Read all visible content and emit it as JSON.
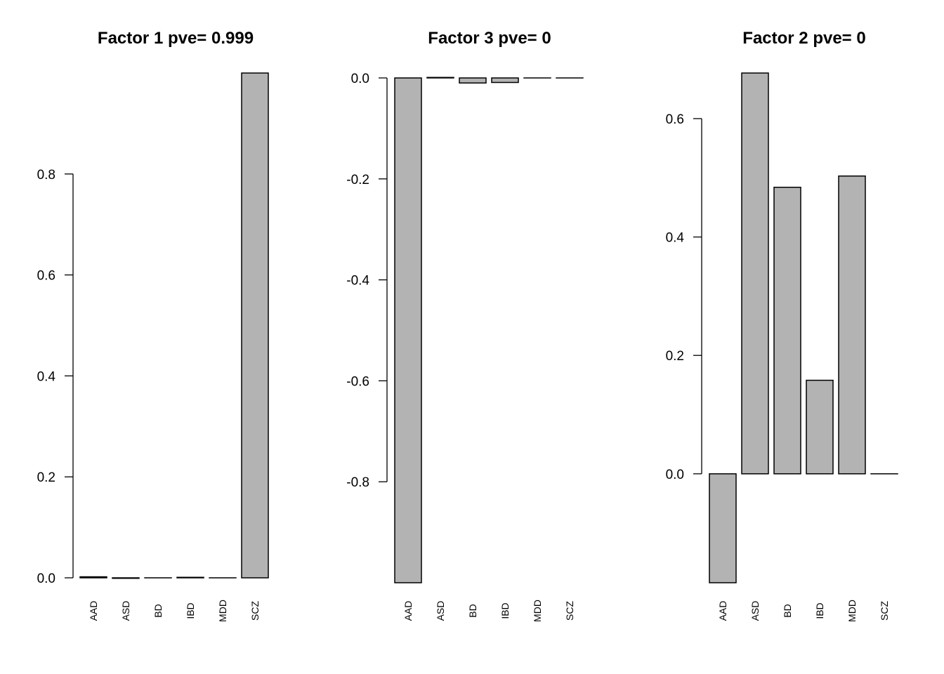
{
  "chart_data": [
    {
      "type": "bar",
      "title": "Factor 1 pve= 0.999",
      "categories": [
        "AAD",
        "ASD",
        "BD",
        "IBD",
        "MDD",
        "SCZ"
      ],
      "values": [
        0.002,
        -0.001,
        0.0,
        0.001,
        0.0,
        1.0
      ],
      "yticks": [
        "0.0",
        "0.2",
        "0.4",
        "0.6",
        "0.8"
      ],
      "ylim": [
        0,
        1.0
      ],
      "xlabel": "",
      "ylabel": ""
    },
    {
      "type": "bar",
      "title": "Factor 3 pve= 0",
      "categories": [
        "AAD",
        "ASD",
        "BD",
        "IBD",
        "MDD",
        "SCZ"
      ],
      "values": [
        -1.0,
        0.001,
        -0.01,
        -0.009,
        0.0,
        0.0
      ],
      "yticks": [
        "0.0",
        "-0.2",
        "-0.4",
        "-0.6",
        "-0.8"
      ],
      "ylim": [
        -1.0,
        0
      ],
      "xlabel": "",
      "ylabel": ""
    },
    {
      "type": "bar",
      "title": "Factor 2 pve= 0",
      "categories": [
        "AAD",
        "ASD",
        "BD",
        "IBD",
        "MDD",
        "SCZ"
      ],
      "values": [
        -0.184,
        0.677,
        0.484,
        0.158,
        0.503,
        0.0
      ],
      "yticks": [
        "0.0",
        "0.2",
        "0.4",
        "0.6"
      ],
      "ylim": [
        -0.184,
        0.677
      ],
      "xlabel": "",
      "ylabel": ""
    }
  ]
}
